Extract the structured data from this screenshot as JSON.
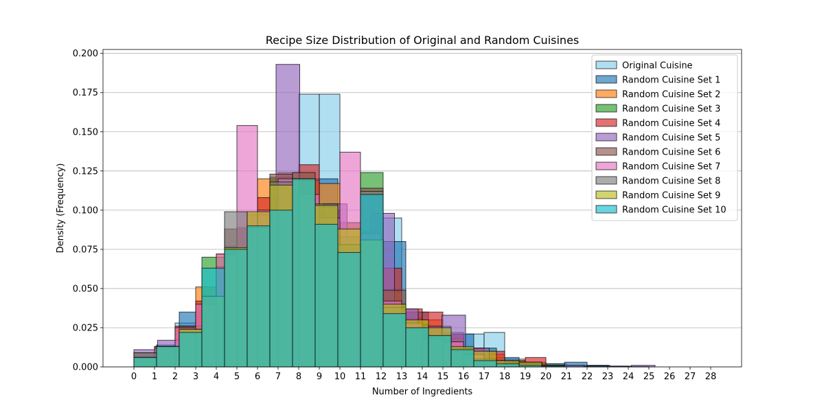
{
  "chart_data": {
    "type": "bar",
    "title": "Recipe Size Distribution of Original and Random Cuisines",
    "xlabel": "Number of Ingredients",
    "ylabel": "Density (Frequency)",
    "xlim": [
      -1.5,
      29.5
    ],
    "ylim": [
      0,
      0.2025
    ],
    "x_ticks": [
      0,
      1,
      2,
      3,
      4,
      5,
      6,
      7,
      8,
      9,
      10,
      11,
      12,
      13,
      14,
      15,
      16,
      17,
      18,
      19,
      20,
      21,
      22,
      23,
      24,
      25,
      26,
      27,
      28
    ],
    "y_ticks": [
      0.0,
      0.025,
      0.05,
      0.075,
      0.1,
      0.125,
      0.15,
      0.175,
      0.2
    ],
    "y_tick_labels": [
      "0.000",
      "0.025",
      "0.050",
      "0.075",
      "0.100",
      "0.125",
      "0.150",
      "0.175",
      "0.200"
    ],
    "grid": "horizontal",
    "legend_position": "top-right",
    "bar_alpha": 0.65,
    "series": [
      {
        "name": "Original Cuisine",
        "color": "#87ceeb",
        "edges": [
          0,
          1,
          2,
          3,
          4,
          5,
          6,
          7,
          8,
          9,
          10,
          11,
          12,
          13,
          14,
          15,
          16,
          17,
          18,
          19,
          20,
          21,
          22,
          23,
          24,
          25,
          26
        ],
        "values": [
          0.006,
          0.013,
          0.028,
          0.039,
          0.063,
          0.085,
          0.096,
          0.103,
          0.174,
          0.174,
          0.092,
          0.087,
          0.095,
          0.035,
          0.026,
          0.022,
          0.021,
          0.022,
          0.005,
          0.003,
          0.002,
          0.001,
          0.001,
          0.0005,
          0.0003,
          0.0
        ]
      },
      {
        "name": "Random Cuisine Set 1",
        "color": "#1f77b4",
        "edges": [
          0,
          1.1,
          2.2,
          3.3,
          4.4,
          5.5,
          6.6,
          7.7,
          8.8,
          9.9,
          11,
          12.1,
          13.2,
          14.3,
          15.4,
          16.5,
          17.6,
          18.7,
          19.8,
          20.9,
          22,
          23.1
        ],
        "values": [
          0.006,
          0.014,
          0.035,
          0.039,
          0.077,
          0.087,
          0.096,
          0.103,
          0.12,
          0.092,
          0.086,
          0.08,
          0.035,
          0.026,
          0.021,
          0.012,
          0.006,
          0.003,
          0.002,
          0.003,
          0.001
        ]
      },
      {
        "name": "Random Cuisine Set 2",
        "color": "#ff7f0e",
        "edges": [
          0,
          1,
          2,
          3,
          4,
          5,
          6,
          7,
          8,
          9,
          10,
          11,
          12,
          13,
          14,
          15,
          16,
          17,
          18,
          19,
          20
        ],
        "values": [
          0.006,
          0.01,
          0.025,
          0.051,
          0.072,
          0.088,
          0.12,
          0.124,
          0.119,
          0.117,
          0.092,
          0.087,
          0.048,
          0.031,
          0.03,
          0.018,
          0.012,
          0.008,
          0.004,
          0.002
        ]
      },
      {
        "name": "Random Cuisine Set 3",
        "color": "#2ca02c",
        "edges": [
          0,
          1.1,
          2.2,
          3.3,
          4.4,
          5.5,
          6.6,
          7.7,
          8.8,
          9.9,
          11,
          12.1,
          13.2,
          14.3,
          15.4,
          16.5,
          17.6,
          18.7,
          19.8,
          20.9
        ],
        "values": [
          0.006,
          0.013,
          0.023,
          0.07,
          0.075,
          0.098,
          0.121,
          0.12,
          0.098,
          0.083,
          0.124,
          0.04,
          0.025,
          0.018,
          0.012,
          0.005,
          0.003,
          0.002,
          0.001
        ]
      },
      {
        "name": "Random Cuisine Set 4",
        "color": "#d62728",
        "edges": [
          0,
          1,
          2,
          3,
          4,
          5,
          6,
          7,
          8,
          9,
          10,
          11,
          12,
          13,
          14,
          15,
          16,
          17,
          18,
          19,
          20
        ],
        "values": [
          0.007,
          0.013,
          0.026,
          0.042,
          0.064,
          0.089,
          0.108,
          0.11,
          0.129,
          0.1,
          0.076,
          0.078,
          0.063,
          0.037,
          0.035,
          0.021,
          0.012,
          0.01,
          0.004,
          0.006
        ]
      },
      {
        "name": "Random Cuisine Set 5",
        "color": "#9467bd",
        "edges": [
          0,
          1.15,
          2.3,
          3.45,
          4.6,
          5.75,
          6.9,
          8.05,
          9.2,
          10.35,
          11.5,
          12.65,
          13.8,
          14.95,
          16.1,
          17.25,
          18.4,
          19.55,
          20.7,
          21.85,
          23,
          24.15,
          25.3
        ],
        "values": [
          0.011,
          0.017,
          0.024,
          0.045,
          0.075,
          0.097,
          0.193,
          0.09,
          0.104,
          0.073,
          0.098,
          0.037,
          0.026,
          0.033,
          0.012,
          0.004,
          0.002,
          0.001,
          0.001,
          0.0005,
          0.0005,
          0.001
        ]
      },
      {
        "name": "Random Cuisine Set 6",
        "color": "#8c564b",
        "edges": [
          0,
          1.1,
          2.2,
          3.3,
          4.4,
          5.5,
          6.6,
          7.7,
          8.8,
          9.9,
          11,
          12.1,
          13.2,
          14.3,
          15.4,
          16.5,
          17.6,
          18.7,
          19.8,
          20.9
        ],
        "values": [
          0.009,
          0.013,
          0.026,
          0.045,
          0.088,
          0.097,
          0.123,
          0.124,
          0.102,
          0.083,
          0.114,
          0.049,
          0.027,
          0.02,
          0.012,
          0.005,
          0.003,
          0.003,
          0.001
        ]
      },
      {
        "name": "Random Cuisine Set 7",
        "color": "#e377c2",
        "edges": [
          0,
          1,
          2,
          3,
          4,
          5,
          6,
          7,
          8,
          9,
          10,
          11,
          12,
          13,
          14,
          15,
          16,
          17,
          18,
          19,
          20
        ],
        "values": [
          0.006,
          0.012,
          0.025,
          0.04,
          0.072,
          0.154,
          0.1,
          0.12,
          0.11,
          0.095,
          0.137,
          0.085,
          0.042,
          0.028,
          0.018,
          0.016,
          0.008,
          0.004,
          0.002,
          0.001
        ]
      },
      {
        "name": "Random Cuisine Set 8",
        "color": "#7f7f7f",
        "edges": [
          0,
          1.1,
          2.2,
          3.3,
          4.4,
          5.5,
          6.6,
          7.7,
          8.8,
          9.9,
          11,
          12.1,
          13.2,
          14.3,
          15.4,
          16.5,
          17.6,
          18.7,
          19.8,
          20.9
        ],
        "values": [
          0.009,
          0.013,
          0.024,
          0.045,
          0.099,
          0.089,
          0.118,
          0.119,
          0.104,
          0.078,
          0.112,
          0.038,
          0.025,
          0.02,
          0.012,
          0.005,
          0.003,
          0.002,
          0.001
        ]
      },
      {
        "name": "Random Cuisine Set 9",
        "color": "#bcbd22",
        "edges": [
          0,
          1.1,
          2.2,
          3.3,
          4.4,
          5.5,
          6.6,
          7.7,
          8.8,
          9.9,
          11,
          12.1,
          13.2,
          14.3,
          15.4,
          16.5,
          17.6,
          18.7,
          19.8,
          20.9
        ],
        "values": [
          0.006,
          0.013,
          0.024,
          0.045,
          0.076,
          0.099,
          0.116,
          0.12,
          0.103,
          0.088,
          0.081,
          0.04,
          0.03,
          0.025,
          0.013,
          0.01,
          0.004,
          0.003,
          0.001
        ]
      },
      {
        "name": "Random Cuisine Set 10",
        "color": "#17becf",
        "edges": [
          0,
          1.1,
          2.2,
          3.3,
          4.4,
          5.5,
          6.6,
          7.7,
          8.8,
          9.9,
          11,
          12.1,
          13.2,
          14.3,
          15.4,
          16.5,
          17.6,
          18.7,
          19.8,
          20.9
        ],
        "values": [
          0.006,
          0.013,
          0.022,
          0.063,
          0.075,
          0.09,
          0.1,
          0.12,
          0.091,
          0.073,
          0.11,
          0.034,
          0.025,
          0.02,
          0.011,
          0.004,
          0.002,
          0.001,
          0.0005
        ]
      }
    ]
  }
}
